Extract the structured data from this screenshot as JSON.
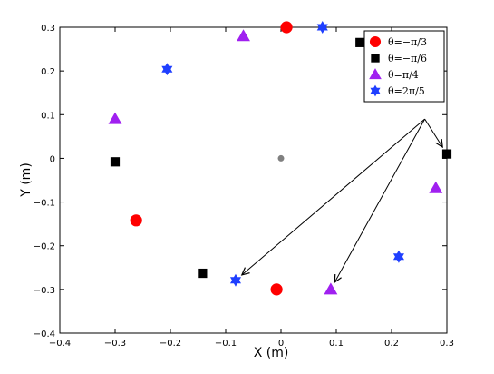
{
  "chart_data": {
    "type": "scatter",
    "title": "",
    "xlabel": "X (m)",
    "ylabel": "Y (m)",
    "xlim": [
      -0.4,
      0.3
    ],
    "ylim": [
      -0.4,
      0.3
    ],
    "xticks": [
      -0.4,
      -0.3,
      -0.2,
      -0.1,
      0,
      0.1,
      0.2,
      0.3
    ],
    "yticks": [
      -0.4,
      -0.3,
      -0.2,
      -0.1,
      0,
      0.1,
      0.2,
      0.3
    ],
    "xtick_labels": [
      "−0.4",
      "−0.3",
      "−0.2",
      "−0.1",
      "0",
      "0.1",
      "0.2",
      "0.3"
    ],
    "ytick_labels": [
      "−0.4",
      "−0.3",
      "−0.2",
      "−0.1",
      "0",
      "0.1",
      "0.2",
      "0.3"
    ],
    "grid": false,
    "legend_position": "top-right",
    "center_point": {
      "x": 0,
      "y": 0,
      "color": "#808080"
    },
    "series": [
      {
        "name": "θ=−π/3",
        "marker": "circle",
        "color": "#ff0000",
        "points": [
          [
            0.01,
            0.3
          ],
          [
            -0.262,
            -0.142
          ],
          [
            -0.008,
            -0.3
          ]
        ]
      },
      {
        "name": "θ=−π/6",
        "marker": "square",
        "color": "#000000",
        "points": [
          [
            0.143,
            0.265
          ],
          [
            0.3,
            0.01
          ],
          [
            -0.142,
            -0.263
          ],
          [
            -0.3,
            -0.008
          ]
        ]
      },
      {
        "name": "θ=π/4",
        "marker": "triangle",
        "color": "#a020f0",
        "points": [
          [
            -0.068,
            0.28
          ],
          [
            -0.3,
            0.09
          ],
          [
            0.09,
            -0.3
          ],
          [
            0.28,
            -0.068
          ]
        ]
      },
      {
        "name": "θ=2π/5",
        "marker": "star",
        "color": "#1f3fff",
        "points": [
          [
            0.075,
            0.3
          ],
          [
            -0.206,
            0.204
          ],
          [
            -0.082,
            -0.279
          ],
          [
            0.213,
            -0.225
          ]
        ]
      }
    ],
    "arrows": [
      {
        "from": [
          0.26,
          0.09
        ],
        "to": [
          0.3,
          0.01
        ]
      },
      {
        "from": [
          0.26,
          0.09
        ],
        "to": [
          -0.082,
          -0.279
        ]
      },
      {
        "from": [
          0.26,
          0.09
        ],
        "to": [
          0.09,
          -0.3
        ]
      }
    ]
  }
}
